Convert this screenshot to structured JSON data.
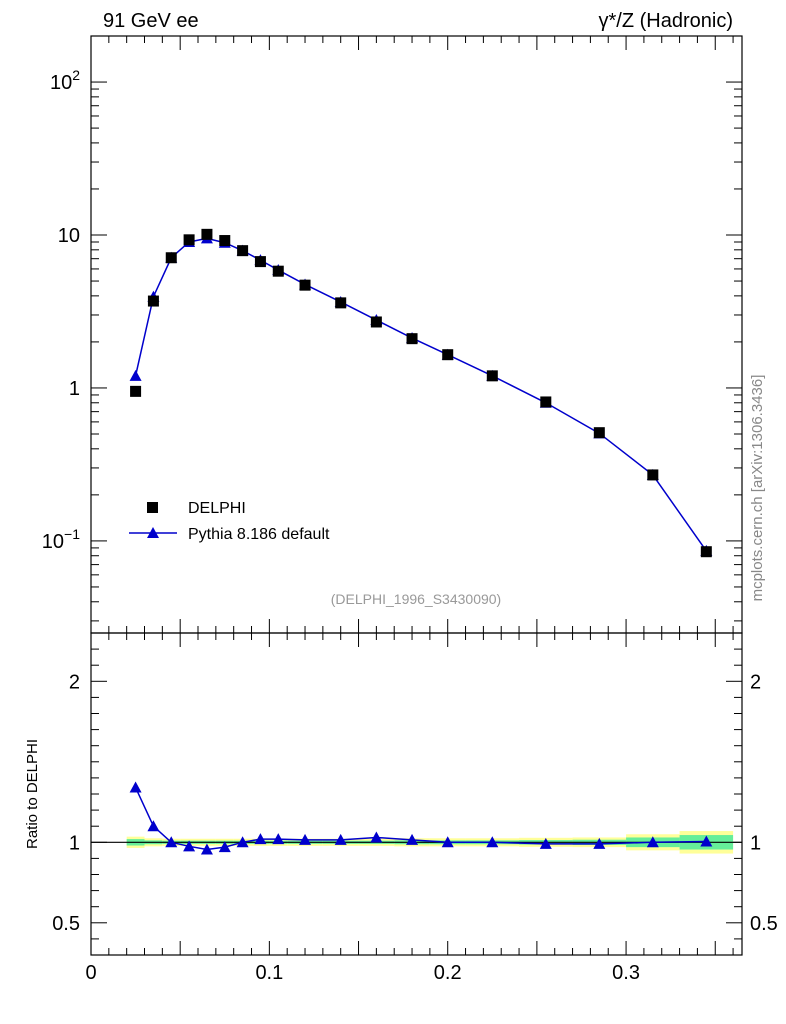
{
  "chart_data": {
    "type": "scatter",
    "title_left": "91 GeV ee",
    "title_right": "γ*/Z (Hadronic)",
    "analysis_label": "(DELPHI_1996_S3430090)",
    "watermark": "mcplots.cern.ch [arXiv:1306.3436]",
    "xlim": [
      0,
      0.365
    ],
    "x_ticks": [
      0,
      0.1,
      0.2,
      0.3
    ],
    "x_tick_labels": [
      "0",
      "0.1",
      "0.2",
      "0.3"
    ],
    "top_panel": {
      "yscale": "log",
      "ylim": [
        0.025,
        200
      ],
      "y_tick_labels": [
        {
          "value": 100,
          "base": "10",
          "exp": "2"
        },
        {
          "value": 10,
          "text": "10"
        },
        {
          "value": 1,
          "text": "1"
        },
        {
          "value": 0.1,
          "base": "10",
          "exp": "−1"
        }
      ]
    },
    "ratio_panel": {
      "ylabel": "Ratio to DELPHI",
      "ylim": [
        0.3,
        2.3
      ],
      "y_tick_labels": [
        {
          "value": 2,
          "text": "2"
        },
        {
          "value": 1,
          "text": "1"
        },
        {
          "value": 0.5,
          "text": "0.5"
        }
      ]
    },
    "x": [
      0.025,
      0.035,
      0.045,
      0.055,
      0.065,
      0.075,
      0.085,
      0.095,
      0.105,
      0.12,
      0.14,
      0.16,
      0.18,
      0.2,
      0.225,
      0.255,
      0.285,
      0.315,
      0.345
    ],
    "bin_edges": [
      0.02,
      0.03,
      0.04,
      0.05,
      0.06,
      0.07,
      0.08,
      0.09,
      0.1,
      0.11,
      0.13,
      0.15,
      0.17,
      0.19,
      0.21,
      0.24,
      0.27,
      0.3,
      0.33,
      0.36
    ],
    "series": [
      {
        "name": "DELPHI",
        "marker": "square",
        "color": "#000000",
        "values": [
          0.95,
          3.7,
          7.1,
          9.3,
          10.1,
          9.2,
          7.9,
          6.7,
          5.8,
          4.7,
          3.6,
          2.7,
          2.1,
          1.65,
          1.2,
          0.81,
          0.51,
          0.27,
          0.085
        ]
      },
      {
        "name": "Pythia 8.186 default",
        "marker": "triangle",
        "color": "#0000cc",
        "values": [
          1.2,
          3.95,
          7.1,
          9.0,
          9.5,
          8.9,
          7.9,
          6.85,
          5.9,
          4.75,
          3.65,
          2.78,
          2.12,
          1.65,
          1.2,
          0.8,
          0.505,
          0.27,
          0.086
        ],
        "ratio": [
          1.34,
          1.1,
          1.0,
          0.975,
          0.955,
          0.97,
          1.0,
          1.02,
          1.02,
          1.015,
          1.015,
          1.03,
          1.015,
          1.0,
          1.0,
          0.99,
          0.99,
          1.0,
          1.005
        ]
      }
    ],
    "data_uncertainty_band": {
      "inner_color": "#66ee99",
      "outer_color": "#ffff99",
      "inner_halfwidth": [
        0.02,
        0.012,
        0.01,
        0.01,
        0.01,
        0.01,
        0.01,
        0.01,
        0.01,
        0.01,
        0.01,
        0.01,
        0.012,
        0.012,
        0.012,
        0.014,
        0.016,
        0.03,
        0.045
      ],
      "outer_halfwidth": [
        0.035,
        0.025,
        0.022,
        0.022,
        0.022,
        0.022,
        0.022,
        0.022,
        0.022,
        0.022,
        0.022,
        0.022,
        0.025,
        0.025,
        0.025,
        0.028,
        0.03,
        0.05,
        0.07
      ]
    },
    "legend": {
      "position": "lower-left",
      "entries": [
        "DELPHI",
        "Pythia 8.186 default"
      ]
    }
  }
}
